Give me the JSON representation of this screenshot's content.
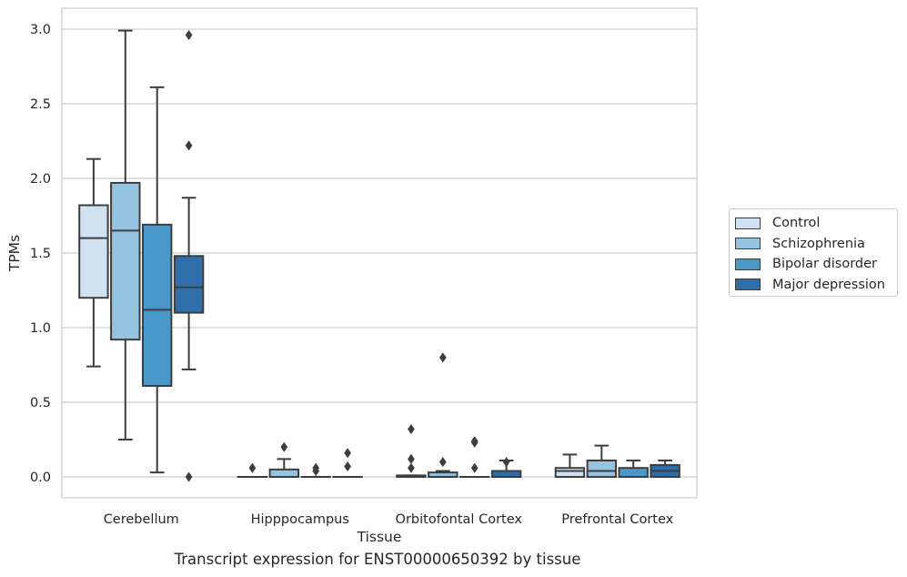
{
  "chart_data": {
    "type": "box",
    "xlabel": "Tissue",
    "ylabel": "TPMs",
    "caption": "Transcript expression for ENST00000650392 by tissue",
    "ylim": [
      -0.14,
      3.14
    ],
    "yticks": [
      "0.0",
      "0.5",
      "1.0",
      "1.5",
      "2.0",
      "2.5",
      "3.0"
    ],
    "categories": [
      "Cerebellum",
      "Hipppocampus",
      "Orbitofontal Cortex",
      "Prefrontal Cortex"
    ],
    "grid": "horizontal",
    "legend_position": "right",
    "series": [
      {
        "name": "Control",
        "color": "#d0e1f2",
        "boxes": [
          {
            "q1": 1.2,
            "median": 1.6,
            "q3": 1.82,
            "whislo": 0.74,
            "whishi": 2.13,
            "fliers": []
          },
          {
            "q1": 0.0,
            "median": 0.0,
            "q3": 0.0,
            "whislo": 0.0,
            "whishi": 0.0,
            "fliers": [
              0.06
            ]
          },
          {
            "q1": 0.0,
            "median": 0.0,
            "q3": 0.01,
            "whislo": 0.0,
            "whishi": 0.01,
            "fliers": [
              0.06,
              0.12,
              0.32
            ]
          },
          {
            "q1": 0.0,
            "median": 0.04,
            "q3": 0.06,
            "whislo": 0.0,
            "whishi": 0.15,
            "fliers": []
          }
        ]
      },
      {
        "name": "Schizophrenia",
        "color": "#94c4df",
        "boxes": [
          {
            "q1": 0.92,
            "median": 1.65,
            "q3": 1.97,
            "whislo": 0.25,
            "whishi": 2.99,
            "fliers": []
          },
          {
            "q1": 0.0,
            "median": 0.0,
            "q3": 0.05,
            "whislo": 0.0,
            "whishi": 0.12,
            "fliers": [
              0.2
            ]
          },
          {
            "q1": 0.0,
            "median": 0.0,
            "q3": 0.03,
            "whislo": 0.0,
            "whishi": 0.04,
            "fliers": [
              0.1,
              0.8
            ]
          },
          {
            "q1": 0.0,
            "median": 0.04,
            "q3": 0.11,
            "whislo": 0.0,
            "whishi": 0.21,
            "fliers": []
          }
        ]
      },
      {
        "name": "Bipolar disorder",
        "color": "#4a98c9",
        "boxes": [
          {
            "q1": 0.61,
            "median": 1.12,
            "q3": 1.69,
            "whislo": 0.03,
            "whishi": 2.61,
            "fliers": []
          },
          {
            "q1": 0.0,
            "median": 0.0,
            "q3": 0.0,
            "whislo": 0.0,
            "whishi": 0.0,
            "fliers": [
              0.04,
              0.06
            ]
          },
          {
            "q1": 0.0,
            "median": 0.0,
            "q3": 0.0,
            "whislo": 0.0,
            "whishi": 0.0,
            "fliers": [
              0.06,
              0.23,
              0.24
            ]
          },
          {
            "q1": 0.0,
            "median": 0.0,
            "q3": 0.06,
            "whislo": 0.0,
            "whishi": 0.11,
            "fliers": []
          }
        ]
      },
      {
        "name": "Major depression",
        "color": "#2e6eaa",
        "boxes": [
          {
            "q1": 1.1,
            "median": 1.27,
            "q3": 1.48,
            "whislo": 0.72,
            "whishi": 1.87,
            "fliers": [
              0.0,
              2.22,
              2.96
            ]
          },
          {
            "q1": 0.0,
            "median": 0.0,
            "q3": 0.0,
            "whislo": 0.0,
            "whishi": 0.0,
            "fliers": [
              0.07,
              0.16
            ]
          },
          {
            "q1": 0.0,
            "median": 0.0,
            "q3": 0.04,
            "whislo": 0.0,
            "whishi": 0.11,
            "fliers": [
              0.1
            ]
          },
          {
            "q1": 0.0,
            "median": 0.04,
            "q3": 0.08,
            "whislo": 0.0,
            "whishi": 0.11,
            "fliers": []
          }
        ]
      }
    ]
  }
}
